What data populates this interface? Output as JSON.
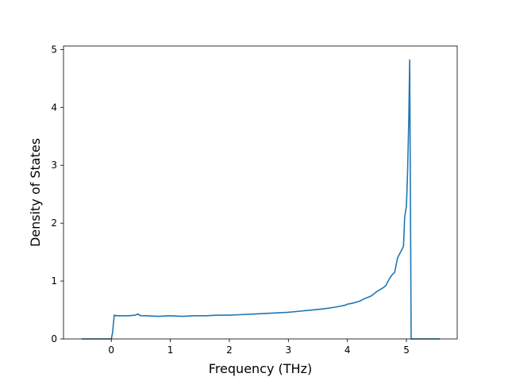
{
  "chart_data": {
    "type": "line",
    "title": "",
    "xlabel": "Frequency (THz)",
    "ylabel": "Density of States",
    "xlim": [
      -0.81,
      5.86
    ],
    "ylim": [
      0,
      5.06
    ],
    "xticks": [
      0,
      1,
      2,
      3,
      4,
      5
    ],
    "yticks": [
      0,
      1,
      2,
      3,
      4,
      5
    ],
    "grid": false,
    "line_color": "#1f77b4",
    "series": [
      {
        "x": [
          -0.5,
          -0.3,
          0.0,
          0.02,
          0.05,
          0.1,
          0.2,
          0.3,
          0.4,
          0.45,
          0.5,
          0.6,
          0.8,
          1.0,
          1.2,
          1.4,
          1.6,
          1.8,
          2.0,
          2.2,
          2.4,
          2.6,
          2.8,
          3.0,
          3.2,
          3.4,
          3.6,
          3.8,
          3.95,
          4.0,
          4.1,
          4.2,
          4.3,
          4.4,
          4.5,
          4.6,
          4.65,
          4.7,
          4.75,
          4.8,
          4.85,
          4.9,
          4.95,
          4.97,
          5.0,
          5.02,
          5.04,
          5.055,
          5.07,
          5.08,
          5.1,
          5.3,
          5.5,
          5.57
        ],
        "y": [
          0,
          0,
          0,
          0.1,
          0.41,
          0.4,
          0.4,
          0.4,
          0.41,
          0.43,
          0.4,
          0.4,
          0.39,
          0.4,
          0.39,
          0.4,
          0.4,
          0.41,
          0.41,
          0.42,
          0.43,
          0.44,
          0.45,
          0.46,
          0.48,
          0.5,
          0.52,
          0.55,
          0.58,
          0.6,
          0.62,
          0.65,
          0.7,
          0.74,
          0.82,
          0.88,
          0.92,
          1.02,
          1.1,
          1.15,
          1.4,
          1.5,
          1.6,
          2.1,
          2.3,
          2.9,
          3.8,
          4.82,
          2.0,
          0,
          0,
          0,
          0,
          0
        ]
      }
    ]
  }
}
